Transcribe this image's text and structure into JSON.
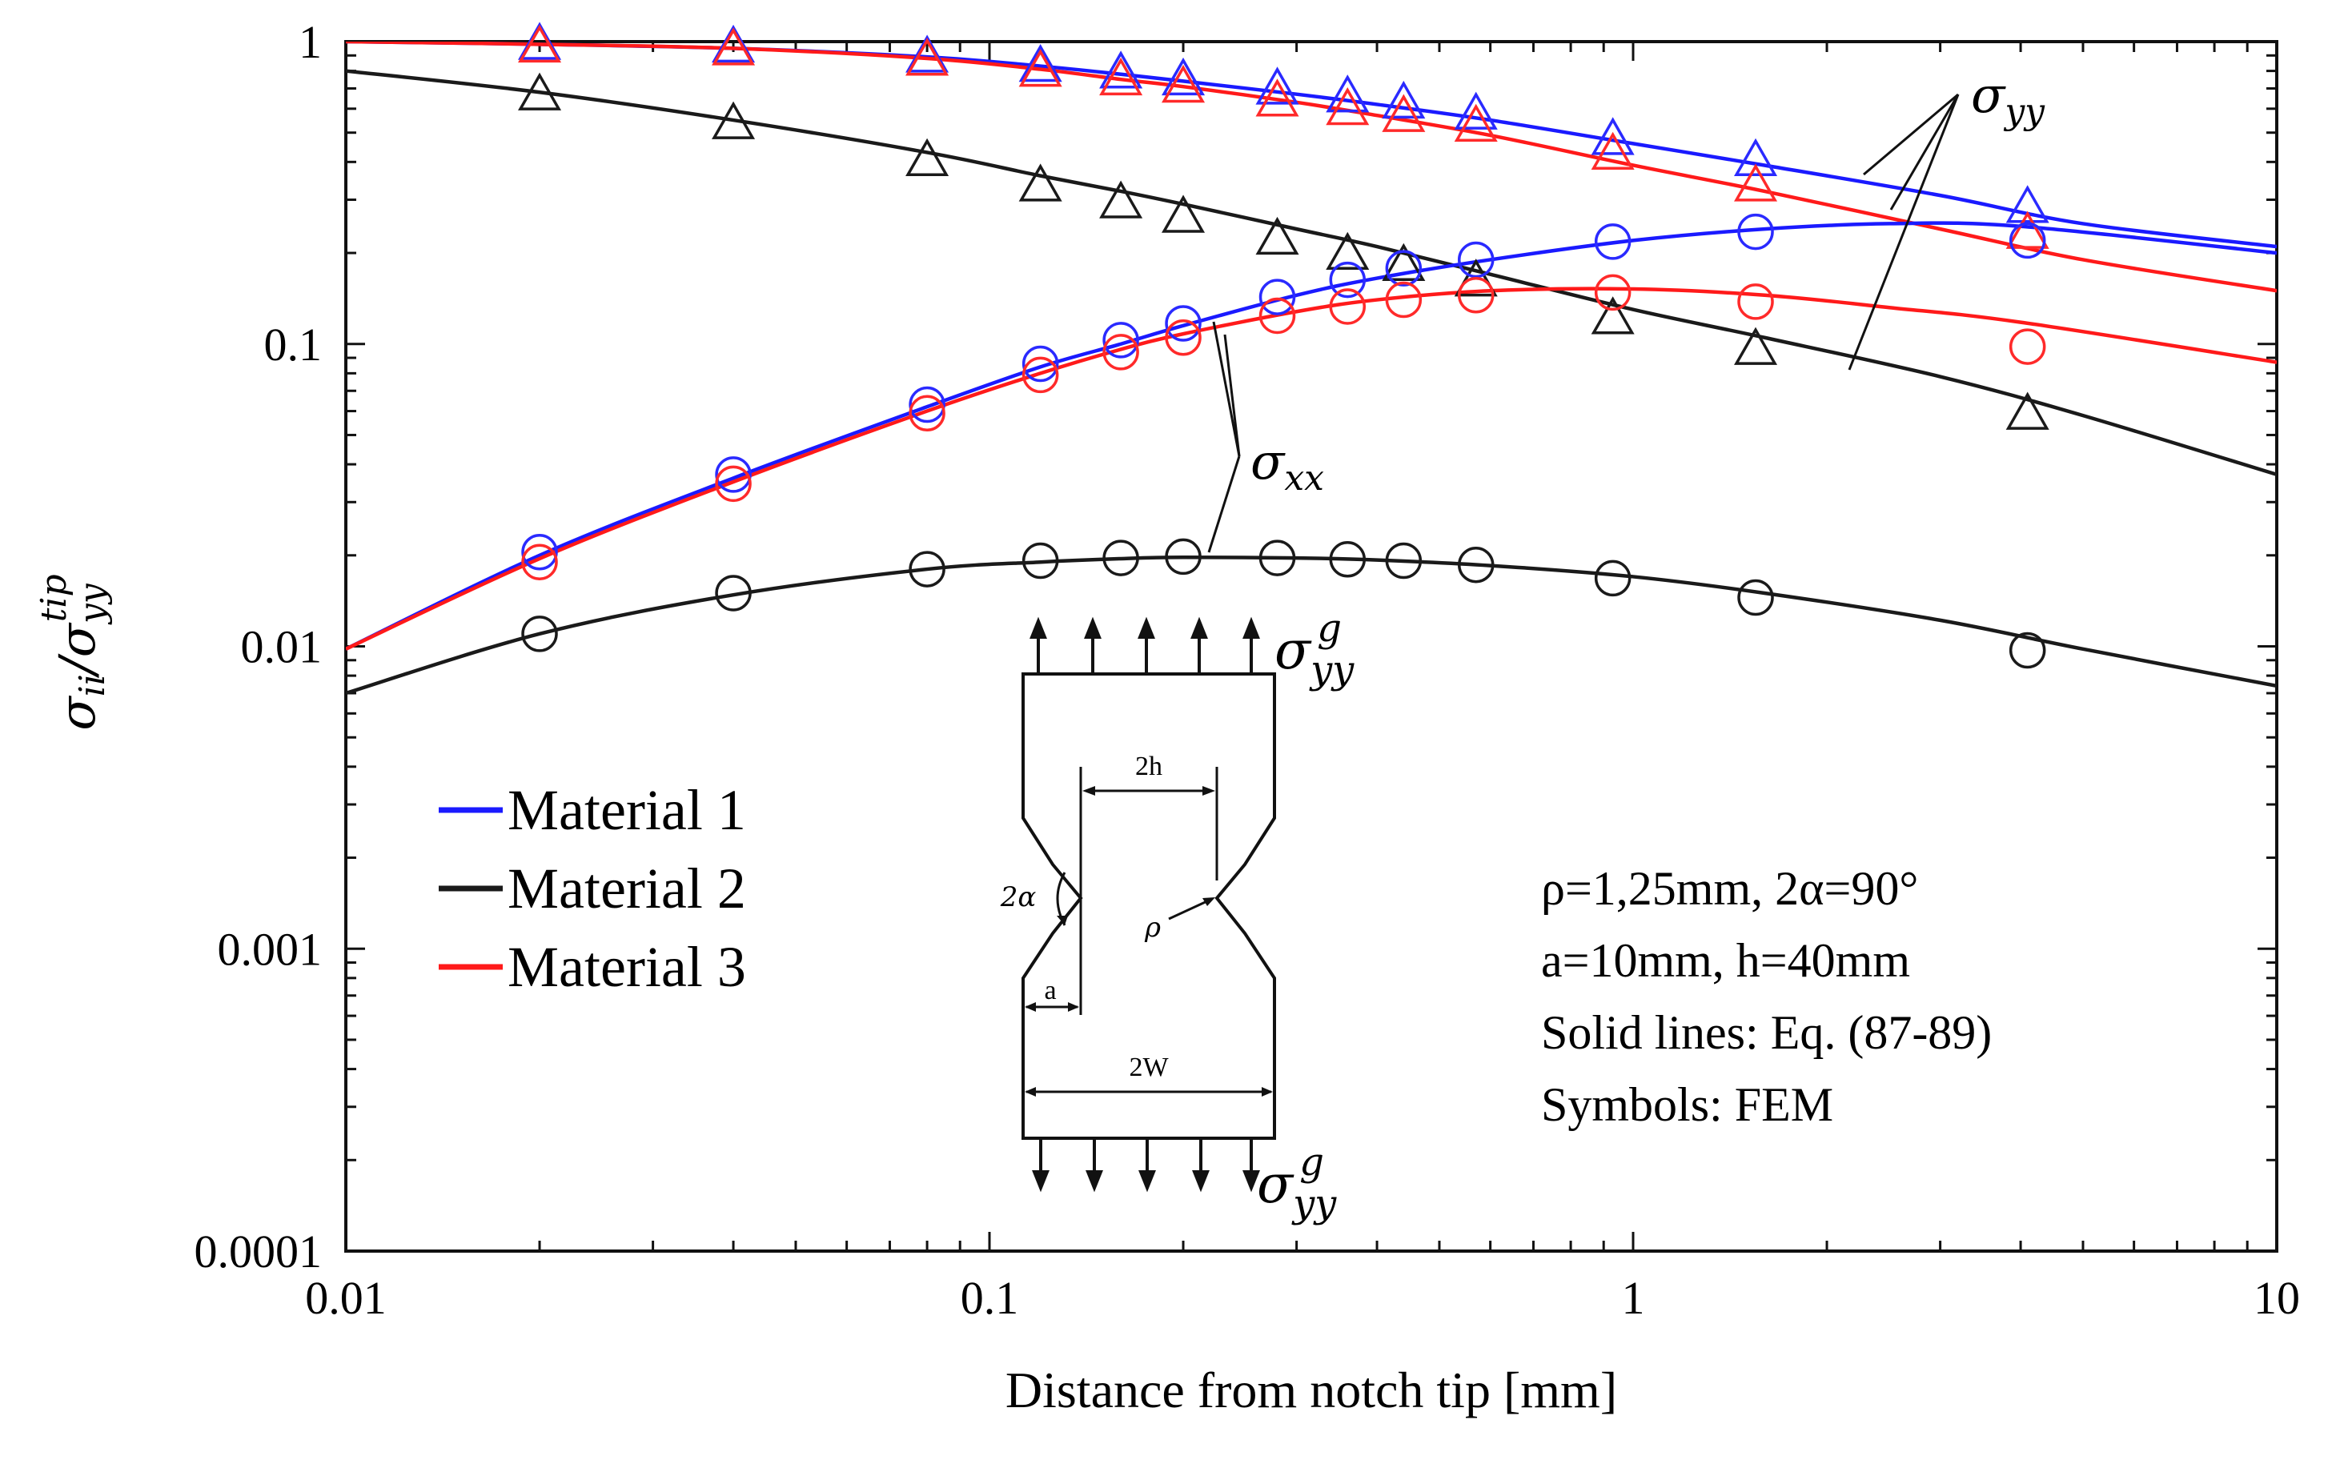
{
  "chart_data": {
    "type": "line",
    "title": "",
    "xlabel": "Distance from notch tip [mm]",
    "ylabel": "σii/σyy^tip",
    "ylabel_parts": {
      "main": "σ",
      "sub1": "ii",
      "slash": "/σ",
      "sub2": "yy",
      "sup": "tip"
    },
    "xscale": "log",
    "yscale": "log",
    "xlim": [
      0.01,
      10
    ],
    "ylim": [
      0.0001,
      1
    ],
    "xticks": [
      {
        "value": 0.01,
        "label": "0.01"
      },
      {
        "value": 0.1,
        "label": "0.1"
      },
      {
        "value": 1,
        "label": "1"
      },
      {
        "value": 10,
        "label": "10"
      }
    ],
    "yticks": [
      {
        "value": 1,
        "label": "1"
      },
      {
        "value": 0.1,
        "label": "0.1"
      },
      {
        "value": 0.01,
        "label": "0.01"
      },
      {
        "value": 0.001,
        "label": "0.001"
      },
      {
        "value": 0.0001,
        "label": "0.0001"
      }
    ],
    "grid": false,
    "legend_position": "bottom-left",
    "legend": [
      {
        "name": "Material 1",
        "color": "#1a1aff"
      },
      {
        "name": "Material 2",
        "color": "#1a1a1a"
      },
      {
        "name": "Material 3",
        "color": "#ff1a1a"
      }
    ],
    "lines": [
      {
        "name": "Material 1 σyy",
        "color": "#1a1aff",
        "x": [
          0.01,
          0.02,
          0.04,
          0.08,
          0.12,
          0.16,
          0.2,
          0.3,
          0.4,
          0.6,
          1,
          1.6,
          3,
          5,
          10
        ],
        "y": [
          1.0,
          0.98,
          0.95,
          0.89,
          0.83,
          0.78,
          0.74,
          0.67,
          0.62,
          0.55,
          0.46,
          0.39,
          0.31,
          0.25,
          0.21
        ]
      },
      {
        "name": "Material 3 σyy",
        "color": "#ff1a1a",
        "x": [
          0.01,
          0.02,
          0.04,
          0.08,
          0.12,
          0.16,
          0.2,
          0.3,
          0.4,
          0.6,
          1,
          1.6,
          3,
          5,
          10
        ],
        "y": [
          1.0,
          0.98,
          0.95,
          0.88,
          0.81,
          0.75,
          0.71,
          0.63,
          0.57,
          0.49,
          0.39,
          0.32,
          0.24,
          0.19,
          0.15
        ]
      },
      {
        "name": "Material 2 σyy",
        "color": "#1a1a1a",
        "x": [
          0.01,
          0.02,
          0.04,
          0.08,
          0.12,
          0.16,
          0.2,
          0.3,
          0.4,
          0.6,
          1,
          1.6,
          3,
          5,
          10
        ],
        "y": [
          0.8,
          0.68,
          0.55,
          0.43,
          0.36,
          0.32,
          0.29,
          0.24,
          0.21,
          0.17,
          0.13,
          0.105,
          0.078,
          0.058,
          0.037
        ]
      },
      {
        "name": "Material 1 σxx",
        "color": "#1a1aff",
        "x": [
          0.01,
          0.02,
          0.04,
          0.08,
          0.12,
          0.16,
          0.2,
          0.3,
          0.4,
          0.6,
          1,
          1.6,
          2.5,
          4,
          10
        ],
        "y": [
          0.0098,
          0.02,
          0.036,
          0.062,
          0.084,
          0.1,
          0.115,
          0.145,
          0.165,
          0.19,
          0.22,
          0.24,
          0.25,
          0.245,
          0.2
        ]
      },
      {
        "name": "Material 3 σxx",
        "color": "#ff1a1a",
        "x": [
          0.01,
          0.02,
          0.04,
          0.08,
          0.12,
          0.16,
          0.2,
          0.3,
          0.4,
          0.6,
          1,
          1.6,
          2.5,
          4,
          10
        ],
        "y": [
          0.0098,
          0.0195,
          0.035,
          0.06,
          0.08,
          0.096,
          0.108,
          0.128,
          0.14,
          0.15,
          0.152,
          0.145,
          0.132,
          0.118,
          0.087
        ]
      },
      {
        "name": "Material 2 σxx",
        "color": "#1a1a1a",
        "x": [
          0.01,
          0.02,
          0.04,
          0.08,
          0.12,
          0.16,
          0.2,
          0.3,
          0.4,
          0.6,
          1,
          1.6,
          3,
          5,
          10
        ],
        "y": [
          0.007,
          0.011,
          0.0148,
          0.018,
          0.019,
          0.0195,
          0.0197,
          0.0196,
          0.0193,
          0.0185,
          0.017,
          0.015,
          0.0122,
          0.0098,
          0.0074
        ]
      }
    ],
    "markers": [
      {
        "name": "Material 1 σyy FEM",
        "shape": "triangle",
        "color": "#2a2aff",
        "x": [
          0.02,
          0.04,
          0.08,
          0.12,
          0.16,
          0.2,
          0.28,
          0.36,
          0.44,
          0.57,
          0.93,
          1.55,
          4.1
        ],
        "y": [
          0.97,
          0.95,
          0.88,
          0.82,
          0.78,
          0.74,
          0.69,
          0.65,
          0.62,
          0.57,
          0.47,
          0.4,
          0.28
        ]
      },
      {
        "name": "Material 3 σyy FEM",
        "shape": "triangle",
        "color": "#ff2a2a",
        "x": [
          0.02,
          0.04,
          0.08,
          0.12,
          0.16,
          0.2,
          0.28,
          0.36,
          0.44,
          0.57,
          0.93,
          1.55,
          4.1
        ],
        "y": [
          0.95,
          0.93,
          0.86,
          0.79,
          0.74,
          0.7,
          0.63,
          0.59,
          0.56,
          0.52,
          0.42,
          0.33,
          0.23
        ]
      },
      {
        "name": "Material 2 σyy FEM",
        "shape": "triangle",
        "color": "#1a1a1a",
        "x": [
          0.02,
          0.04,
          0.08,
          0.12,
          0.16,
          0.2,
          0.28,
          0.36,
          0.44,
          0.57,
          0.93,
          1.55,
          4.1
        ],
        "y": [
          0.66,
          0.53,
          0.4,
          0.33,
          0.29,
          0.26,
          0.22,
          0.196,
          0.18,
          0.16,
          0.12,
          0.095,
          0.058
        ]
      },
      {
        "name": "Material 1 σxx FEM",
        "shape": "circle",
        "color": "#2a2aff",
        "x": [
          0.02,
          0.04,
          0.08,
          0.12,
          0.16,
          0.2,
          0.28,
          0.36,
          0.44,
          0.57,
          0.93,
          1.55,
          4.1
        ],
        "y": [
          0.0205,
          0.037,
          0.063,
          0.086,
          0.103,
          0.117,
          0.143,
          0.163,
          0.178,
          0.19,
          0.218,
          0.235,
          0.22
        ]
      },
      {
        "name": "Material 3 σxx FEM",
        "shape": "circle",
        "color": "#ff2a2a",
        "x": [
          0.02,
          0.04,
          0.08,
          0.12,
          0.16,
          0.2,
          0.28,
          0.36,
          0.44,
          0.57,
          0.93,
          1.55,
          4.1
        ],
        "y": [
          0.019,
          0.0345,
          0.059,
          0.079,
          0.094,
          0.105,
          0.124,
          0.133,
          0.14,
          0.145,
          0.148,
          0.138,
          0.098
        ]
      },
      {
        "name": "Material 2 σxx FEM",
        "shape": "circle",
        "color": "#1a1a1a",
        "x": [
          0.02,
          0.04,
          0.08,
          0.12,
          0.16,
          0.2,
          0.28,
          0.36,
          0.44,
          0.57,
          0.93,
          1.55,
          4.1
        ],
        "y": [
          0.011,
          0.015,
          0.018,
          0.0192,
          0.0196,
          0.0198,
          0.0196,
          0.0194,
          0.0192,
          0.0186,
          0.0168,
          0.0145,
          0.0097
        ]
      }
    ],
    "annotations": {
      "syy_label": {
        "main": "σ",
        "sub": "yy"
      },
      "sxx_label": {
        "main": "σ",
        "sub": "xx"
      },
      "gross_stress_label": {
        "main": "σ",
        "sub": "yy",
        "sup": "g"
      }
    },
    "parameters_box": [
      "ρ=1,25mm, 2α=90°",
      "a=10mm, h=40mm",
      "Solid lines: Eq. (87-89)",
      "Symbols: FEM"
    ],
    "specimen_diagram": {
      "labels": {
        "h": "2h",
        "alpha": "2α",
        "rho": "ρ",
        "a": "a",
        "w": "2W"
      }
    }
  }
}
